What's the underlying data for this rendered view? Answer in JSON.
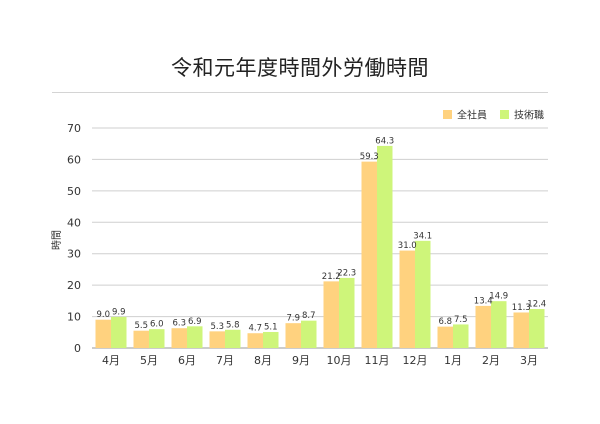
{
  "chart_data": {
    "type": "bar",
    "title": "令和元年度時間外労働時間",
    "ylabel": "時間",
    "xlabel": "",
    "ylim": [
      0,
      70
    ],
    "yticks": [
      0,
      10,
      20,
      30,
      40,
      50,
      60,
      70
    ],
    "grid": true,
    "legend_position": "top-right",
    "categories": [
      "4月",
      "5月",
      "6月",
      "7月",
      "8月",
      "9月",
      "10月",
      "11月",
      "12月",
      "1月",
      "2月",
      "3月"
    ],
    "series": [
      {
        "name": "全社員",
        "color": "#ffd27f",
        "values": [
          9.0,
          5.5,
          6.3,
          5.3,
          4.7,
          7.9,
          21.2,
          59.3,
          31.0,
          6.8,
          13.4,
          11.3
        ],
        "labels": [
          "9.0",
          "5.5",
          "6.3",
          "5.3",
          "4.7",
          "7.9",
          "21.2",
          "59.3",
          "31.0",
          "6.8",
          "13.4",
          "11.3"
        ]
      },
      {
        "name": "技術職",
        "color": "#cef57a",
        "values": [
          9.9,
          6.0,
          6.9,
          5.8,
          5.1,
          8.7,
          22.3,
          64.3,
          34.1,
          7.5,
          14.9,
          12.4
        ],
        "labels": [
          "9.9",
          "6.0",
          "6.9",
          "5.8",
          "5.1",
          "8.7",
          "22.3",
          "64.3",
          "34.1",
          "7.5",
          "14.9",
          "12.4"
        ]
      }
    ]
  }
}
